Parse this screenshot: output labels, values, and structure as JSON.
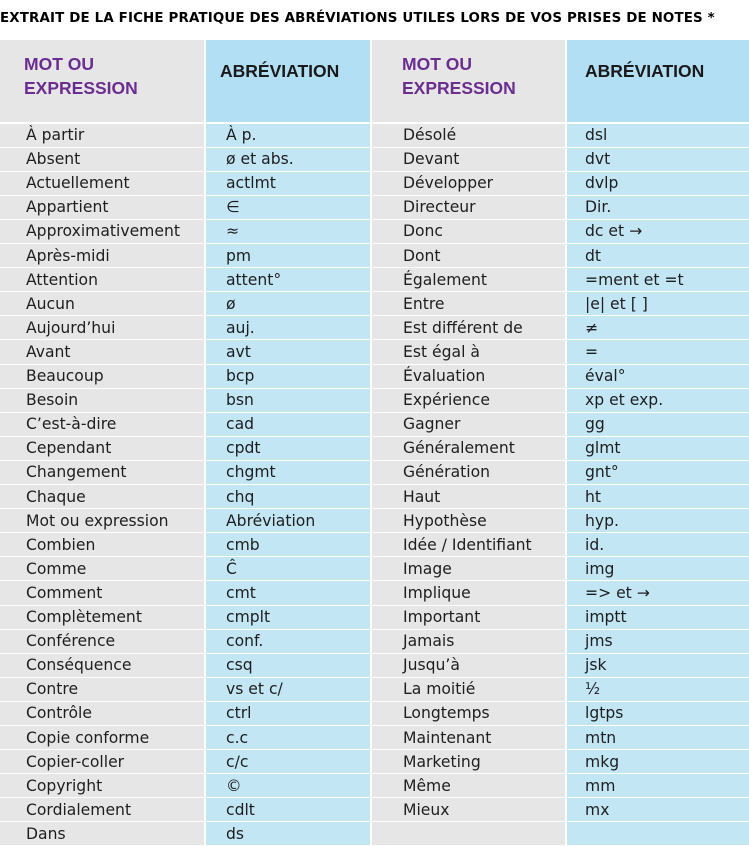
{
  "title": "EXTRAIT DE LA FICHE PRATIQUE DES ABRÉVIATIONS UTILES LORS DE VOS PRISES DE NOTES *",
  "headers": {
    "left_word": "MOT OU\nEXPRESSION",
    "left_abbr": "ABRÉVIATION",
    "right_word": "MOT OU\nEXPRESSION",
    "right_abbr": "ABRÉVIATION"
  },
  "colors": {
    "word_bg": "#e6e6e6",
    "abbr_bg": "#c3e6f5",
    "abbr_header_bg": "#b2dff3",
    "header_purple": "#6b2d8f"
  },
  "left_rows": [
    {
      "word": "À partir",
      "abbr": "À p."
    },
    {
      "word": "Absent",
      "abbr": "ø et abs."
    },
    {
      "word": "Actuellement",
      "abbr": "actlmt"
    },
    {
      "word": "Appartient",
      "abbr": "∈"
    },
    {
      "word": "Approximativement",
      "abbr": "≈"
    },
    {
      "word": "Après-midi",
      "abbr": "pm"
    },
    {
      "word": "Attention",
      "abbr": "attent°"
    },
    {
      "word": "Aucun",
      "abbr": "ø"
    },
    {
      "word": "Aujourd’hui",
      "abbr": "auj."
    },
    {
      "word": "Avant",
      "abbr": "avt"
    },
    {
      "word": "Beaucoup",
      "abbr": "bcp"
    },
    {
      "word": "Besoin",
      "abbr": "bsn"
    },
    {
      "word": "C’est-à-dire",
      "abbr": "cad"
    },
    {
      "word": "Cependant",
      "abbr": "cpdt"
    },
    {
      "word": "Changement",
      "abbr": "chgmt"
    },
    {
      "word": "Chaque",
      "abbr": "chq"
    },
    {
      "word": "Mot ou expression",
      "abbr": "Abréviation"
    },
    {
      "word": "Combien",
      "abbr": "cmb"
    },
    {
      "word": "Comme",
      "abbr": "Ĉ"
    },
    {
      "word": "Comment",
      "abbr": "cmt"
    },
    {
      "word": "Complètement",
      "abbr": "cmplt"
    },
    {
      "word": "Conférence",
      "abbr": "conf."
    },
    {
      "word": "Conséquence",
      "abbr": "csq"
    },
    {
      "word": "Contre",
      "abbr": "vs et c/"
    },
    {
      "word": "Contrôle",
      "abbr": "ctrl"
    },
    {
      "word": "Copie conforme",
      "abbr": "c.c"
    },
    {
      "word": "Copier-coller",
      "abbr": "c/c"
    },
    {
      "word": "Copyright",
      "abbr": "©"
    },
    {
      "word": "Cordialement",
      "abbr": "cdlt"
    },
    {
      "word": "Dans",
      "abbr": "ds"
    }
  ],
  "right_rows": [
    {
      "word": "Désolé",
      "abbr": "dsl"
    },
    {
      "word": "Devant",
      "abbr": "dvt"
    },
    {
      "word": "Développer",
      "abbr": "dvlp"
    },
    {
      "word": "Directeur",
      "abbr": "Dir."
    },
    {
      "word": "Donc",
      "abbr": "dc et →"
    },
    {
      "word": "Dont",
      "abbr": "dt"
    },
    {
      "word": "Également",
      "abbr": "=ment et =t"
    },
    {
      "word": "Entre",
      "abbr": "|e| et [ ]"
    },
    {
      "word": "Est différent de",
      "abbr": "≠"
    },
    {
      "word": "Est égal à",
      "abbr": "="
    },
    {
      "word": "Évaluation",
      "abbr": "éval°"
    },
    {
      "word": "Expérience",
      "abbr": "xp et exp."
    },
    {
      "word": "Gagner",
      "abbr": "gg"
    },
    {
      "word": "Généralement",
      "abbr": "glmt"
    },
    {
      "word": "Génération",
      "abbr": "gnt°"
    },
    {
      "word": "Haut",
      "abbr": "ht"
    },
    {
      "word": "Hypothèse",
      "abbr": "hyp."
    },
    {
      "word": "Idée / Identifiant",
      "abbr": "id."
    },
    {
      "word": "Image",
      "abbr": "img"
    },
    {
      "word": "Implique",
      "abbr": "=> et →"
    },
    {
      "word": "Important",
      "abbr": "imptt"
    },
    {
      "word": "Jamais",
      "abbr": "jms"
    },
    {
      "word": "Jusqu’à",
      "abbr": "jsk"
    },
    {
      "word": "La moitié",
      "abbr": "½"
    },
    {
      "word": "Longtemps",
      "abbr": "lgtps"
    },
    {
      "word": "Maintenant",
      "abbr": "mtn"
    },
    {
      "word": "Marketing",
      "abbr": "mkg"
    },
    {
      "word": "Même",
      "abbr": "mm"
    },
    {
      "word": "Mieux",
      "abbr": "mx"
    }
  ]
}
